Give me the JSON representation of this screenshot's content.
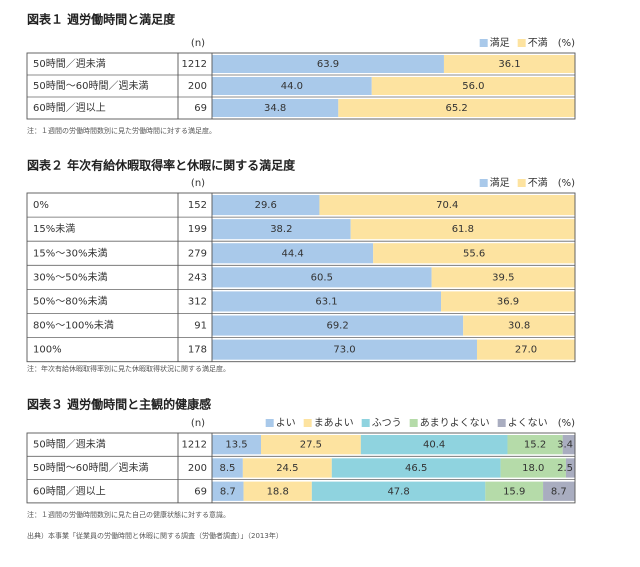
{
  "chart_data": [
    {
      "type": "bar",
      "orientation": "horizontal",
      "stacked": true,
      "title": "図表１ 週労働時間と満足度",
      "n_label": "(n)",
      "unit_label": "(%)",
      "categories": [
        "50時間／週未満",
        "50時間〜60時間／週未満",
        "60時間／週以上"
      ],
      "n": [
        1212,
        200,
        69
      ],
      "xlim": [
        0,
        100
      ],
      "series": [
        {
          "name": "満足",
          "color": "#a9c9ea",
          "values": [
            63.9,
            44.0,
            34.8
          ],
          "value_labels": [
            "63.9",
            "44.0",
            "34.8"
          ]
        },
        {
          "name": "不満",
          "color": "#fde3a0",
          "values": [
            36.1,
            56.0,
            65.2
          ],
          "value_labels": [
            "36.1",
            "56.0",
            "65.2"
          ]
        }
      ],
      "note": "注：１週間の労働時間数別に見た労働時間に対する満足度。"
    },
    {
      "type": "bar",
      "orientation": "horizontal",
      "stacked": true,
      "title": "図表２ 年次有給休暇取得率と休暇に関する満足度",
      "n_label": "(n)",
      "unit_label": "(%)",
      "categories": [
        "0%",
        "15%未満",
        "15%〜30%未満",
        "30%〜50%未満",
        "50%〜80%未満",
        "80%〜100%未満",
        "100%"
      ],
      "n": [
        152,
        199,
        279,
        243,
        312,
        91,
        178
      ],
      "xlim": [
        0,
        100
      ],
      "series": [
        {
          "name": "満足",
          "color": "#a9c9ea",
          "values": [
            29.6,
            38.2,
            44.4,
            60.5,
            63.1,
            69.2,
            73.0
          ],
          "value_labels": [
            "29.6",
            "38.2",
            "44.4",
            "60.5",
            "63.1",
            "69.2",
            "73.0"
          ]
        },
        {
          "name": "不満",
          "color": "#fde3a0",
          "values": [
            70.4,
            61.8,
            55.6,
            39.5,
            36.9,
            30.8,
            27.0
          ],
          "value_labels": [
            "70.4",
            "61.8",
            "55.6",
            "39.5",
            "36.9",
            "30.8",
            "27.0"
          ]
        }
      ],
      "note": "注：年次有給休暇取得率別に見た休暇取得状況に関する満足度。"
    },
    {
      "type": "bar",
      "orientation": "horizontal",
      "stacked": true,
      "title": "図表３ 週労働時間と主観的健康感",
      "n_label": "(n)",
      "unit_label": "(%)",
      "categories": [
        "50時間／週未満",
        "50時間〜60時間／週未満",
        "60時間／週以上"
      ],
      "n": [
        1212,
        200,
        69
      ],
      "xlim": [
        0,
        100
      ],
      "series": [
        {
          "name": "よい",
          "color": "#a9c9ea",
          "values": [
            13.5,
            8.5,
            8.7
          ],
          "value_labels": [
            "13.5",
            "8.5",
            "8.7"
          ]
        },
        {
          "name": "まあよい",
          "color": "#fde3a0",
          "values": [
            27.5,
            24.5,
            18.8
          ],
          "value_labels": [
            "27.5",
            "24.5",
            "18.8"
          ]
        },
        {
          "name": "ふつう",
          "color": "#8fd3df",
          "values": [
            40.4,
            46.5,
            47.8
          ],
          "value_labels": [
            "40.4",
            "46.5",
            "47.8"
          ]
        },
        {
          "name": "あまりよくない",
          "color": "#b5dba9",
          "values": [
            15.2,
            18.0,
            15.9
          ],
          "value_labels": [
            "15.2",
            "18.0",
            "15.9"
          ]
        },
        {
          "name": "よくない",
          "color": "#a9adc0",
          "values": [
            3.4,
            2.5,
            8.7
          ],
          "value_labels": [
            "3.4",
            "2.5",
            "8.7"
          ]
        }
      ],
      "note": "注：１週間の労働時間数別に見た自己の健康状態に対する意識。"
    }
  ],
  "source": "出典）本事業「従業員の労働時間と休暇に関する調査（労働者調査）」（2013年）"
}
